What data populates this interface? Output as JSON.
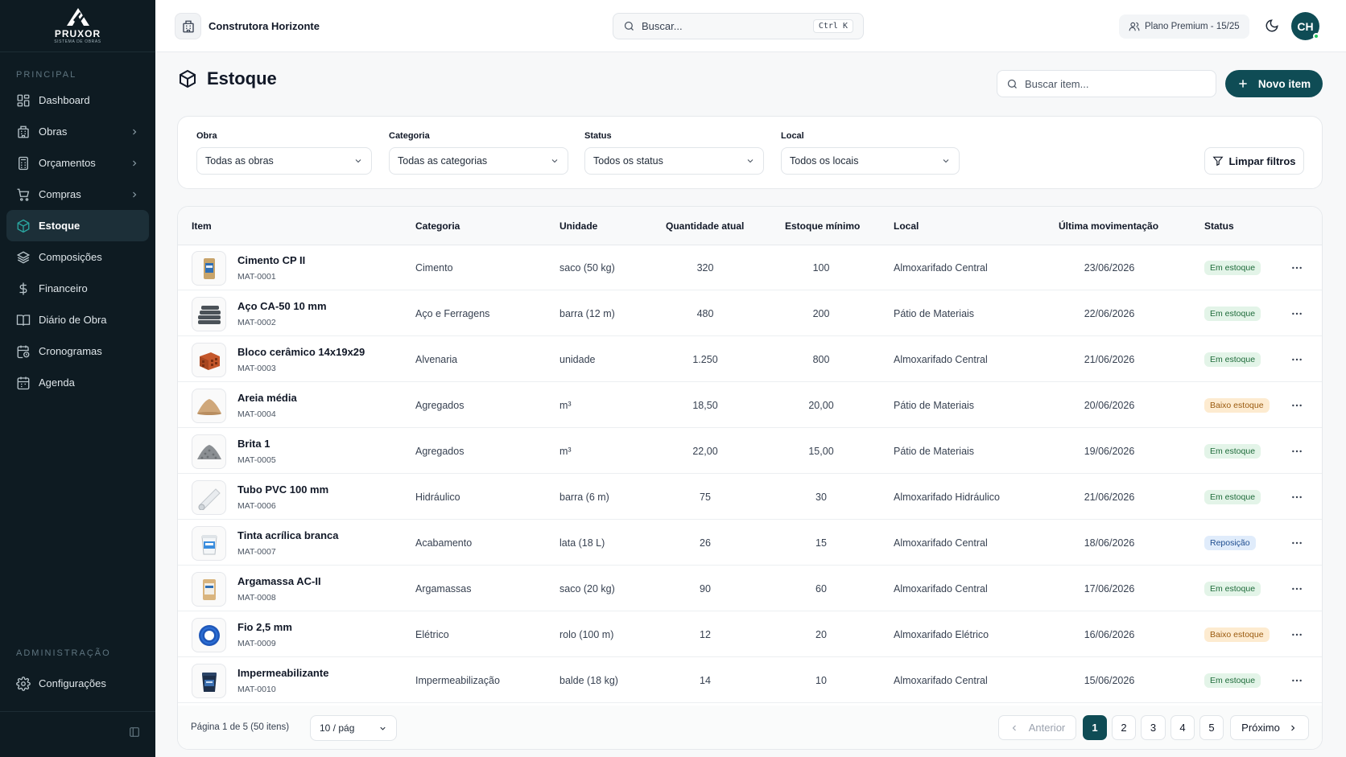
{
  "brand": {
    "name": "PRUXOR",
    "tagline": "SISTEMA DE OBRAS"
  },
  "sidebar": {
    "section_main": "PRINCIPAL",
    "items": [
      {
        "label": "Dashboard",
        "icon": "grid-icon",
        "has_children": false,
        "active": false
      },
      {
        "label": "Obras",
        "icon": "building-icon",
        "has_children": true,
        "active": false
      },
      {
        "label": "Orçamentos",
        "icon": "calculator-icon",
        "has_children": true,
        "active": false
      },
      {
        "label": "Compras",
        "icon": "cart-icon",
        "has_children": true,
        "active": false
      },
      {
        "label": "Estoque",
        "icon": "box-icon",
        "has_children": false,
        "active": true
      },
      {
        "label": "Composições",
        "icon": "layers-icon",
        "has_children": false,
        "active": false
      },
      {
        "label": "Financeiro",
        "icon": "dollar-icon",
        "has_children": false,
        "active": false
      },
      {
        "label": "Diário de Obra",
        "icon": "book-icon",
        "has_children": false,
        "active": false
      },
      {
        "label": "Cronogramas",
        "icon": "calendar-clock-icon",
        "has_children": false,
        "active": false
      },
      {
        "label": "Agenda",
        "icon": "calendar-icon",
        "has_children": false,
        "active": false
      }
    ],
    "section_admin": "ADMINISTRAÇÃO",
    "admin_items": [
      {
        "label": "Configurações",
        "icon": "gear-icon"
      }
    ]
  },
  "topbar": {
    "company": "Construtora Horizonte",
    "search_placeholder": "Buscar...",
    "search_shortcut": "Ctrl K",
    "plan": "Plano Premium - 15/25",
    "avatar_initials": "CH"
  },
  "page": {
    "title": "Estoque",
    "item_search_placeholder": "Buscar item...",
    "new_button": "Novo item"
  },
  "filters": {
    "obra": {
      "label": "Obra",
      "value": "Todas as obras"
    },
    "categoria": {
      "label": "Categoria",
      "value": "Todas as categorias"
    },
    "status": {
      "label": "Status",
      "value": "Todos os status"
    },
    "local": {
      "label": "Local",
      "value": "Todos os locais"
    },
    "clear_button": "Limpar filtros"
  },
  "table": {
    "columns": [
      "Item",
      "Categoria",
      "Unidade",
      "Quantidade atual",
      "Estoque mínimo",
      "Local",
      "Última movimentação",
      "Status"
    ],
    "rows": [
      {
        "name": "Cimento CP II",
        "code": "MAT-0001",
        "category": "Cimento",
        "unit": "saco (50 kg)",
        "qty": "320",
        "min": "100",
        "location": "Almoxarifado Central",
        "last": "23/06/2026",
        "status": "Em estoque",
        "status_type": "ok",
        "thumb": "cement-bag-icon"
      },
      {
        "name": "Aço CA-50 10 mm",
        "code": "MAT-0002",
        "category": "Aço e Ferragens",
        "unit": "barra (12 m)",
        "qty": "480",
        "min": "200",
        "location": "Pátio de Materiais",
        "last": "22/06/2026",
        "status": "Em estoque",
        "status_type": "ok",
        "thumb": "steel-bars-icon"
      },
      {
        "name": "Bloco cerâmico 14x19x29",
        "code": "MAT-0003",
        "category": "Alvenaria",
        "unit": "unidade",
        "qty": "1.250",
        "min": "800",
        "location": "Almoxarifado Central",
        "last": "21/06/2026",
        "status": "Em estoque",
        "status_type": "ok",
        "thumb": "ceramic-block-icon"
      },
      {
        "name": "Areia média",
        "code": "MAT-0004",
        "category": "Agregados",
        "unit": "m³",
        "qty": "18,50",
        "min": "20,00",
        "location": "Pátio de Materiais",
        "last": "20/06/2026",
        "status": "Baixo estoque",
        "status_type": "low",
        "thumb": "sand-pile-icon"
      },
      {
        "name": "Brita 1",
        "code": "MAT-0005",
        "category": "Agregados",
        "unit": "m³",
        "qty": "22,00",
        "min": "15,00",
        "location": "Pátio de Materiais",
        "last": "19/06/2026",
        "status": "Em estoque",
        "status_type": "ok",
        "thumb": "gravel-pile-icon"
      },
      {
        "name": "Tubo PVC 100 mm",
        "code": "MAT-0006",
        "category": "Hidráulico",
        "unit": "barra (6 m)",
        "qty": "75",
        "min": "30",
        "location": "Almoxarifado Hidráulico",
        "last": "21/06/2026",
        "status": "Em estoque",
        "status_type": "ok",
        "thumb": "pvc-pipe-icon"
      },
      {
        "name": "Tinta acrílica branca",
        "code": "MAT-0007",
        "category": "Acabamento",
        "unit": "lata (18 L)",
        "qty": "26",
        "min": "15",
        "location": "Almoxarifado Central",
        "last": "18/06/2026",
        "status": "Reposição",
        "status_type": "restock",
        "thumb": "paint-bucket-icon"
      },
      {
        "name": "Argamassa AC-II",
        "code": "MAT-0008",
        "category": "Argamassas",
        "unit": "saco (20 kg)",
        "qty": "90",
        "min": "60",
        "location": "Almoxarifado Central",
        "last": "17/06/2026",
        "status": "Em estoque",
        "status_type": "ok",
        "thumb": "mortar-bag-icon"
      },
      {
        "name": "Fio 2,5 mm",
        "code": "MAT-0009",
        "category": "Elétrico",
        "unit": "rolo (100 m)",
        "qty": "12",
        "min": "20",
        "location": "Almoxarifado Elétrico",
        "last": "16/06/2026",
        "status": "Baixo estoque",
        "status_type": "low",
        "thumb": "wire-roll-icon"
      },
      {
        "name": "Impermeabilizante",
        "code": "MAT-0010",
        "category": "Impermeabilização",
        "unit": "balde (18 kg)",
        "qty": "14",
        "min": "10",
        "location": "Almoxarifado Central",
        "last": "15/06/2026",
        "status": "Em estoque",
        "status_type": "ok",
        "thumb": "waterproof-bucket-icon"
      }
    ]
  },
  "pagination": {
    "info": "Página 1 de 5 (50 itens)",
    "per_page": "10 / pág",
    "prev": "Anterior",
    "next": "Próximo",
    "pages": [
      "1",
      "2",
      "3",
      "4",
      "5"
    ],
    "current": "1"
  },
  "colors": {
    "primary": "#0f4c55",
    "sidebar_bg": "#0e1b22",
    "accent": "#2aa6a0"
  }
}
